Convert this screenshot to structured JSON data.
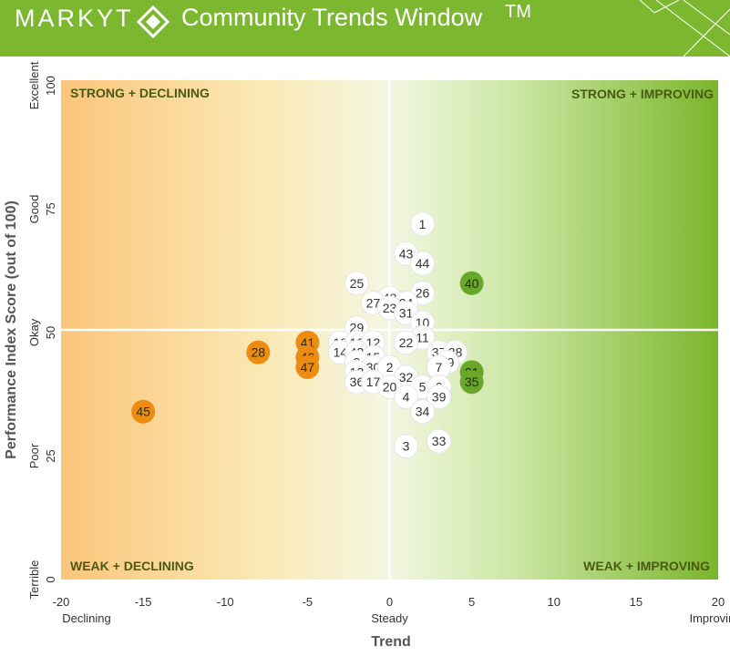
{
  "header": {
    "brand": "MARKYT",
    "title": "Community Trends Window",
    "trademark": "TM",
    "brand_color": "#7cb82f",
    "logo_icon": "diamond-icon"
  },
  "chart_data": {
    "type": "scatter",
    "xlabel": "Trend",
    "ylabel": "Performance Index Score (out of 100)",
    "xlim": [
      -20,
      20
    ],
    "ylim": [
      0,
      100
    ],
    "x_ticks": [
      -20,
      -15,
      -10,
      -5,
      0,
      5,
      10,
      15,
      20
    ],
    "y_ticks": [
      0,
      25,
      50,
      75,
      100
    ],
    "x_descriptors": [
      "Declining",
      "Steady",
      "Improving"
    ],
    "y_descriptors": [
      "Terrible",
      "Poor",
      "Okay",
      "Good",
      "Excellent"
    ],
    "quadrant_labels": {
      "top_left": "STRONG + DECLINING",
      "top_right": "STRONG + IMPROVING",
      "bottom_left": "WEAK + DECLINING",
      "bottom_right": "WEAK + IMPROVING"
    },
    "colors": {
      "declining_gradient_start": "#fbc57b",
      "steady_gradient_mid": "#f3f7e1",
      "improving_gradient_end": "#7ab52a",
      "highlight_declining": "#ee8c12",
      "highlight_improving": "#69a72a",
      "neutral_point": "#ffffff"
    },
    "points": [
      {
        "id": "1",
        "x": 2,
        "y": 72,
        "category": "neutral"
      },
      {
        "id": "43",
        "x": 1,
        "y": 66,
        "category": "neutral"
      },
      {
        "id": "44",
        "x": 2,
        "y": 64,
        "category": "neutral"
      },
      {
        "id": "25",
        "x": -2,
        "y": 60,
        "category": "neutral"
      },
      {
        "id": "40",
        "x": 5,
        "y": 60,
        "category": "improving"
      },
      {
        "id": "26",
        "x": 2,
        "y": 58,
        "category": "neutral"
      },
      {
        "id": "48",
        "x": 0,
        "y": 57,
        "category": "neutral"
      },
      {
        "id": "27",
        "x": -1,
        "y": 56,
        "category": "neutral"
      },
      {
        "id": "24",
        "x": 1,
        "y": 56,
        "category": "neutral"
      },
      {
        "id": "23",
        "x": 0,
        "y": 55,
        "category": "neutral"
      },
      {
        "id": "31",
        "x": 1,
        "y": 54,
        "category": "neutral"
      },
      {
        "id": "10",
        "x": 2,
        "y": 52,
        "category": "neutral"
      },
      {
        "id": "29",
        "x": -2,
        "y": 51,
        "category": "neutral"
      },
      {
        "id": "11",
        "x": 2,
        "y": 49,
        "category": "neutral"
      },
      {
        "id": "18",
        "x": -3,
        "y": 48,
        "category": "neutral"
      },
      {
        "id": "16",
        "x": -2,
        "y": 48,
        "category": "neutral"
      },
      {
        "id": "12",
        "x": -1,
        "y": 48,
        "category": "neutral"
      },
      {
        "id": "22",
        "x": 1,
        "y": 48,
        "category": "neutral"
      },
      {
        "id": "41",
        "x": -5,
        "y": 48,
        "category": "declining"
      },
      {
        "id": "14",
        "x": -3,
        "y": 46,
        "category": "neutral"
      },
      {
        "id": "42",
        "x": -2,
        "y": 46,
        "category": "neutral"
      },
      {
        "id": "37",
        "x": 3,
        "y": 46,
        "category": "neutral"
      },
      {
        "id": "38",
        "x": 4,
        "y": 46,
        "category": "neutral"
      },
      {
        "id": "28",
        "x": -8,
        "y": 46,
        "category": "declining"
      },
      {
        "id": "46",
        "x": -5,
        "y": 45,
        "category": "declining"
      },
      {
        "id": "15",
        "x": -1,
        "y": 45,
        "category": "neutral"
      },
      {
        "id": "8",
        "x": -2,
        "y": 44,
        "category": "neutral"
      },
      {
        "id": "19",
        "x": 3.5,
        "y": 44,
        "category": "neutral"
      },
      {
        "id": "47",
        "x": -5,
        "y": 43,
        "category": "declining"
      },
      {
        "id": "30",
        "x": -1,
        "y": 43,
        "category": "neutral"
      },
      {
        "id": "2",
        "x": 0,
        "y": 43,
        "category": "neutral"
      },
      {
        "id": "7",
        "x": 3,
        "y": 43,
        "category": "neutral"
      },
      {
        "id": "21",
        "x": 5,
        "y": 42,
        "category": "improving"
      },
      {
        "id": "13",
        "x": -2,
        "y": 42,
        "category": "neutral"
      },
      {
        "id": "32",
        "x": 1,
        "y": 41,
        "category": "neutral"
      },
      {
        "id": "35",
        "x": 5,
        "y": 40,
        "category": "improving"
      },
      {
        "id": "36",
        "x": -2,
        "y": 40,
        "category": "neutral"
      },
      {
        "id": "17",
        "x": -1,
        "y": 40,
        "category": "neutral"
      },
      {
        "id": "20",
        "x": 0,
        "y": 39,
        "category": "neutral"
      },
      {
        "id": "5",
        "x": 2,
        "y": 39,
        "category": "neutral"
      },
      {
        "id": "6",
        "x": 3,
        "y": 39,
        "category": "neutral"
      },
      {
        "id": "4",
        "x": 1,
        "y": 37,
        "category": "neutral"
      },
      {
        "id": "39",
        "x": 3,
        "y": 37,
        "category": "neutral"
      },
      {
        "id": "34",
        "x": 2,
        "y": 34,
        "category": "neutral"
      },
      {
        "id": "45",
        "x": -15,
        "y": 34,
        "category": "declining"
      },
      {
        "id": "33",
        "x": 3,
        "y": 28,
        "category": "neutral"
      },
      {
        "id": "3",
        "x": 1,
        "y": 27,
        "category": "neutral"
      }
    ]
  }
}
